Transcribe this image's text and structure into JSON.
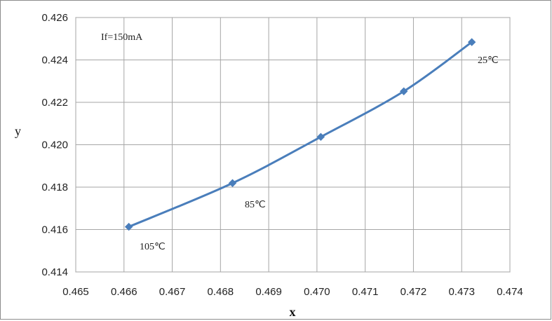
{
  "chart_data": {
    "type": "line",
    "xlabel": "x",
    "ylabel": "y",
    "xlim": [
      0.465,
      0.474
    ],
    "ylim": [
      0.414,
      0.426
    ],
    "x_ticks": [
      "0.465",
      "0.466",
      "0.467",
      "0.468",
      "0.469",
      "0.470",
      "0.471",
      "0.472",
      "0.473",
      "0.474"
    ],
    "y_ticks": [
      "0.414",
      "0.416",
      "0.418",
      "0.420",
      "0.422",
      "0.424",
      "0.426"
    ],
    "grid": true,
    "series": [
      {
        "color": "#4a7ebb",
        "marker": "diamond",
        "points": [
          {
            "x": 0.4661,
            "y": 0.41613
          },
          {
            "x": 0.46825,
            "y": 0.41819
          },
          {
            "x": 0.47008,
            "y": 0.42037
          },
          {
            "x": 0.4718,
            "y": 0.42252
          },
          {
            "x": 0.47321,
            "y": 0.42484
          }
        ]
      }
    ],
    "annotations": {
      "condition": "If=150mA",
      "labels": [
        "105℃",
        "85℃",
        "25℃"
      ]
    }
  }
}
